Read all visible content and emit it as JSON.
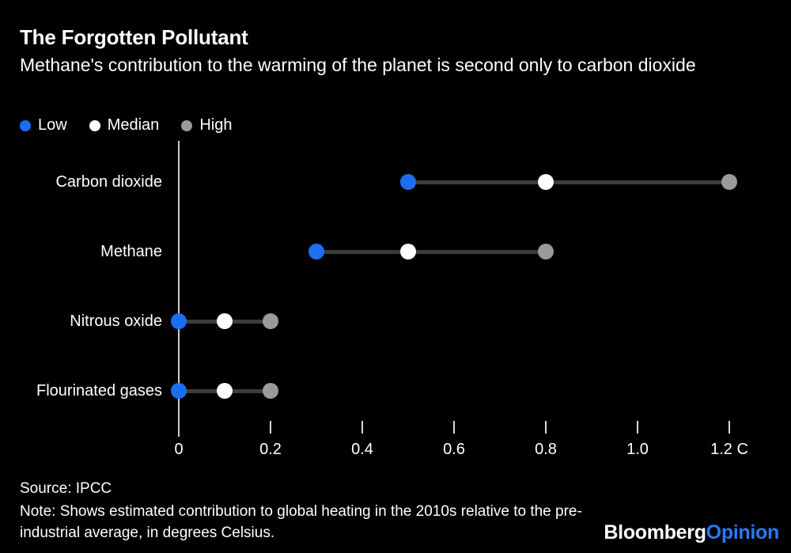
{
  "header": {
    "title": "The Forgotten Pollutant",
    "subtitle": "Methane's contribution to the warming of the planet is second only to carbon dioxide"
  },
  "legend": [
    {
      "label": "Low",
      "color": "#1d6ff2"
    },
    {
      "label": "Median",
      "color": "#ffffff"
    },
    {
      "label": "High",
      "color": "#9a9a9a"
    }
  ],
  "chart_data": {
    "type": "scatter",
    "subtype": "dot-range-dumbbell",
    "orientation": "horizontal",
    "categories": [
      "Carbon dioxide",
      "Methane",
      "Nitrous oxide",
      "Flourinated gases"
    ],
    "series": [
      {
        "name": "Low",
        "color": "#1d6ff2",
        "values": [
          0.5,
          0.3,
          0.0,
          0.0
        ]
      },
      {
        "name": "Median",
        "color": "#ffffff",
        "values": [
          0.8,
          0.5,
          0.1,
          0.1
        ]
      },
      {
        "name": "High",
        "color": "#9a9a9a",
        "values": [
          1.2,
          0.8,
          0.2,
          0.2
        ]
      }
    ],
    "title": "The Forgotten Pollutant",
    "xlabel": "",
    "ylabel": "",
    "xlim": [
      0,
      1.2
    ],
    "x_tick_values": [
      0,
      0.2,
      0.4,
      0.6,
      0.8,
      1.0,
      1.2
    ],
    "x_tick_labels": [
      "0",
      "0.2",
      "0.4",
      "0.6",
      "0.8",
      "1.0",
      "1.2 C"
    ],
    "unit": "degrees Celsius",
    "grid": false,
    "legend_position": "top-left"
  },
  "footer": {
    "source": "Source: IPCC",
    "note": "Note: Shows estimated contribution to global heating in the 2010s relative to the pre-industrial average, in degrees Celsius."
  },
  "branding": {
    "name": "Bloomberg",
    "suffix": "Opinion"
  },
  "colors": {
    "background": "#000000",
    "text": "#ffffff",
    "accent_blue": "#1d6ff2",
    "median_white": "#ffffff",
    "high_gray": "#9a9a9a",
    "range_line": "#3c3c3c",
    "axis_line": "#cccccc",
    "logo_blue": "#2b79f5"
  }
}
